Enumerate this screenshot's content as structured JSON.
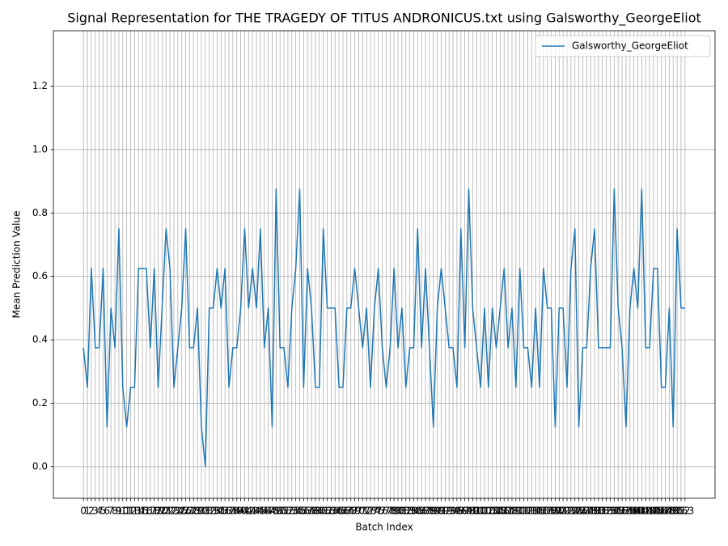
{
  "chart_data": {
    "type": "line",
    "title": "Signal Representation for THE TRAGEDY OF TITUS ANDRONICUS.txt using Galsworthy_GeorgeEliot",
    "x_label": "Batch Index",
    "y_label": "Mean Prediction Value",
    "x": [
      0,
      1,
      2,
      3,
      4,
      5,
      6,
      7,
      8,
      9,
      10,
      11,
      12,
      13,
      14,
      15,
      16,
      17,
      18,
      19,
      20,
      21,
      22,
      23,
      24,
      25,
      26,
      27,
      28,
      29,
      30,
      31,
      32,
      33,
      34,
      35,
      36,
      37,
      38,
      39,
      40,
      41,
      42,
      43,
      44,
      45,
      46,
      47,
      48,
      49,
      50,
      51,
      52,
      53,
      54,
      55,
      56,
      57,
      58,
      59,
      60,
      61,
      62,
      63,
      64,
      65,
      66,
      67,
      68,
      69,
      70,
      71,
      72,
      73,
      74,
      75,
      76,
      77,
      78,
      79,
      80,
      81,
      82,
      83,
      84,
      85,
      86,
      87,
      88,
      89,
      90,
      91,
      92,
      93,
      94,
      95,
      96,
      97,
      98,
      99,
      100,
      101,
      102,
      103,
      104,
      105,
      106,
      107,
      108,
      109,
      110,
      111,
      112,
      113,
      114,
      115,
      116,
      117,
      118,
      119,
      120,
      121,
      122,
      123,
      124,
      125,
      126,
      127,
      128,
      129,
      130,
      131,
      132,
      133,
      134,
      135,
      136,
      137,
      138,
      139,
      140,
      141,
      142,
      143,
      144,
      145,
      146,
      147,
      148,
      149,
      150,
      151,
      152,
      153
    ],
    "series": [
      {
        "name": "Galsworthy_GeorgeEliot",
        "color": "#1f77b4",
        "values": [
          0.375,
          0.25,
          0.625,
          0.375,
          0.375,
          0.625,
          0.125,
          0.5,
          0.375,
          0.75,
          0.25,
          0.125,
          0.25,
          0.25,
          0.625,
          0.625,
          0.625,
          0.375,
          0.625,
          0.25,
          0.5,
          0.75,
          0.625,
          0.25,
          0.375,
          0.5,
          0.75,
          0.375,
          0.375,
          0.5,
          0.125,
          0,
          0.5,
          0.5,
          0.625,
          0.5,
          0.625,
          0.25,
          0.375,
          0.375,
          0.5,
          0.75,
          0.5,
          0.625,
          0.5,
          0.75,
          0.375,
          0.5,
          0.125,
          0.875,
          0.375,
          0.375,
          0.25,
          0.5,
          0.625,
          0.875,
          0.25,
          0.625,
          0.5,
          0.25,
          0.25,
          0.75,
          0.5,
          0.5,
          0.5,
          0.25,
          0.25,
          0.5,
          0.5,
          0.625,
          0.5,
          0.375,
          0.5,
          0.25,
          0.5,
          0.625,
          0.375,
          0.25,
          0.375,
          0.625,
          0.375,
          0.5,
          0.25,
          0.375,
          0.375,
          0.75,
          0.375,
          0.625,
          0.375,
          0.125,
          0.5,
          0.625,
          0.5,
          0.375,
          0.375,
          0.25,
          0.75,
          0.375,
          0.875,
          0.5,
          0.375,
          0.25,
          0.5,
          0.25,
          0.5,
          0.375,
          0.5,
          0.625,
          0.375,
          0.5,
          0.25,
          0.625,
          0.375,
          0.375,
          0.25,
          0.5,
          0.25,
          0.625,
          0.5,
          0.5,
          0.125,
          0.5,
          0.5,
          0.25,
          0.625,
          0.75,
          0.125,
          0.375,
          0.375,
          0.625,
          0.75,
          0.375,
          0.375,
          0.375,
          0.375,
          0.875,
          0.5,
          0.375,
          0.125,
          0.5,
          0.625,
          0.5,
          0.875,
          0.375,
          0.375,
          0.625,
          0.625,
          0.25,
          0.25,
          0.5,
          0.125,
          0.75,
          0.5,
          0.5
        ]
      }
    ],
    "xlim": [
      -7.65,
      160.65
    ],
    "xticks": [
      0,
      1,
      2,
      3,
      4,
      5,
      6,
      7,
      8,
      9,
      10,
      11,
      12,
      13,
      14,
      15,
      16,
      17,
      18,
      19,
      20,
      21,
      22,
      23,
      24,
      25,
      26,
      27,
      28,
      29,
      30,
      31,
      32,
      33,
      34,
      35,
      36,
      37,
      38,
      39,
      40,
      41,
      42,
      43,
      44,
      45,
      46,
      47,
      48,
      49,
      50,
      51,
      52,
      53,
      54,
      55,
      56,
      57,
      58,
      59,
      60,
      61,
      62,
      63,
      64,
      65,
      66,
      67,
      68,
      69,
      70,
      71,
      72,
      73,
      74,
      75,
      76,
      77,
      78,
      79,
      80,
      81,
      82,
      83,
      84,
      85,
      86,
      87,
      88,
      89,
      90,
      91,
      92,
      93,
      94,
      95,
      96,
      97,
      98,
      99,
      100,
      101,
      102,
      103,
      104,
      105,
      106,
      107,
      108,
      109,
      110,
      111,
      112,
      113,
      114,
      115,
      116,
      117,
      118,
      119,
      120,
      121,
      122,
      123,
      124,
      125,
      126,
      127,
      128,
      129,
      130,
      131,
      132,
      133,
      134,
      135,
      136,
      137,
      138,
      139,
      140,
      141,
      142,
      143,
      144,
      145,
      146,
      147,
      148,
      149,
      150,
      151,
      152,
      153
    ],
    "ylim": [
      -0.1,
      1.375
    ],
    "yticks": [
      {
        "value": 0,
        "label": "0.0"
      },
      0.2,
      0.4,
      0.6,
      0.8,
      {
        "value": 1,
        "label": "1.0"
      },
      1.2
    ],
    "grid": true,
    "legend": "upper right"
  }
}
